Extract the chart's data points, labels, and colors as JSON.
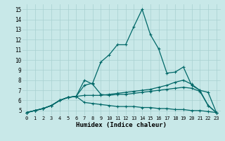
{
  "xlabel": "Humidex (Indice chaleur)",
  "background_color": "#c8e8e8",
  "grid_color": "#a8d0d0",
  "line_color": "#006868",
  "xlim": [
    -0.5,
    23.5
  ],
  "ylim": [
    4.5,
    15.5
  ],
  "xticks": [
    0,
    1,
    2,
    3,
    4,
    5,
    6,
    7,
    8,
    9,
    10,
    11,
    12,
    13,
    14,
    15,
    16,
    17,
    18,
    19,
    20,
    21,
    22,
    23
  ],
  "yticks": [
    5,
    6,
    7,
    8,
    9,
    10,
    11,
    12,
    13,
    14,
    15
  ],
  "series": [
    [
      4.8,
      5.0,
      5.2,
      5.5,
      6.0,
      6.3,
      6.4,
      7.5,
      7.7,
      9.8,
      10.5,
      11.5,
      11.5,
      13.3,
      15.0,
      12.5,
      11.1,
      8.7,
      8.8,
      9.3,
      7.5,
      7.0,
      5.5,
      4.8
    ],
    [
      4.8,
      5.0,
      5.2,
      5.5,
      6.0,
      6.3,
      6.4,
      6.5,
      6.5,
      6.5,
      6.6,
      6.7,
      6.8,
      6.9,
      7.0,
      7.1,
      7.3,
      7.5,
      7.8,
      8.0,
      7.6,
      7.0,
      6.8,
      4.8
    ],
    [
      4.8,
      5.0,
      5.2,
      5.5,
      6.0,
      6.3,
      6.4,
      5.8,
      5.7,
      5.6,
      5.5,
      5.4,
      5.4,
      5.4,
      5.3,
      5.3,
      5.2,
      5.2,
      5.1,
      5.1,
      5.0,
      5.0,
      4.9,
      4.8
    ],
    [
      4.8,
      5.0,
      5.2,
      5.5,
      6.0,
      6.3,
      6.4,
      8.0,
      7.6,
      6.6,
      6.5,
      6.6,
      6.6,
      6.7,
      6.8,
      6.9,
      7.0,
      7.1,
      7.2,
      7.3,
      7.2,
      6.9,
      5.5,
      4.8
    ]
  ]
}
